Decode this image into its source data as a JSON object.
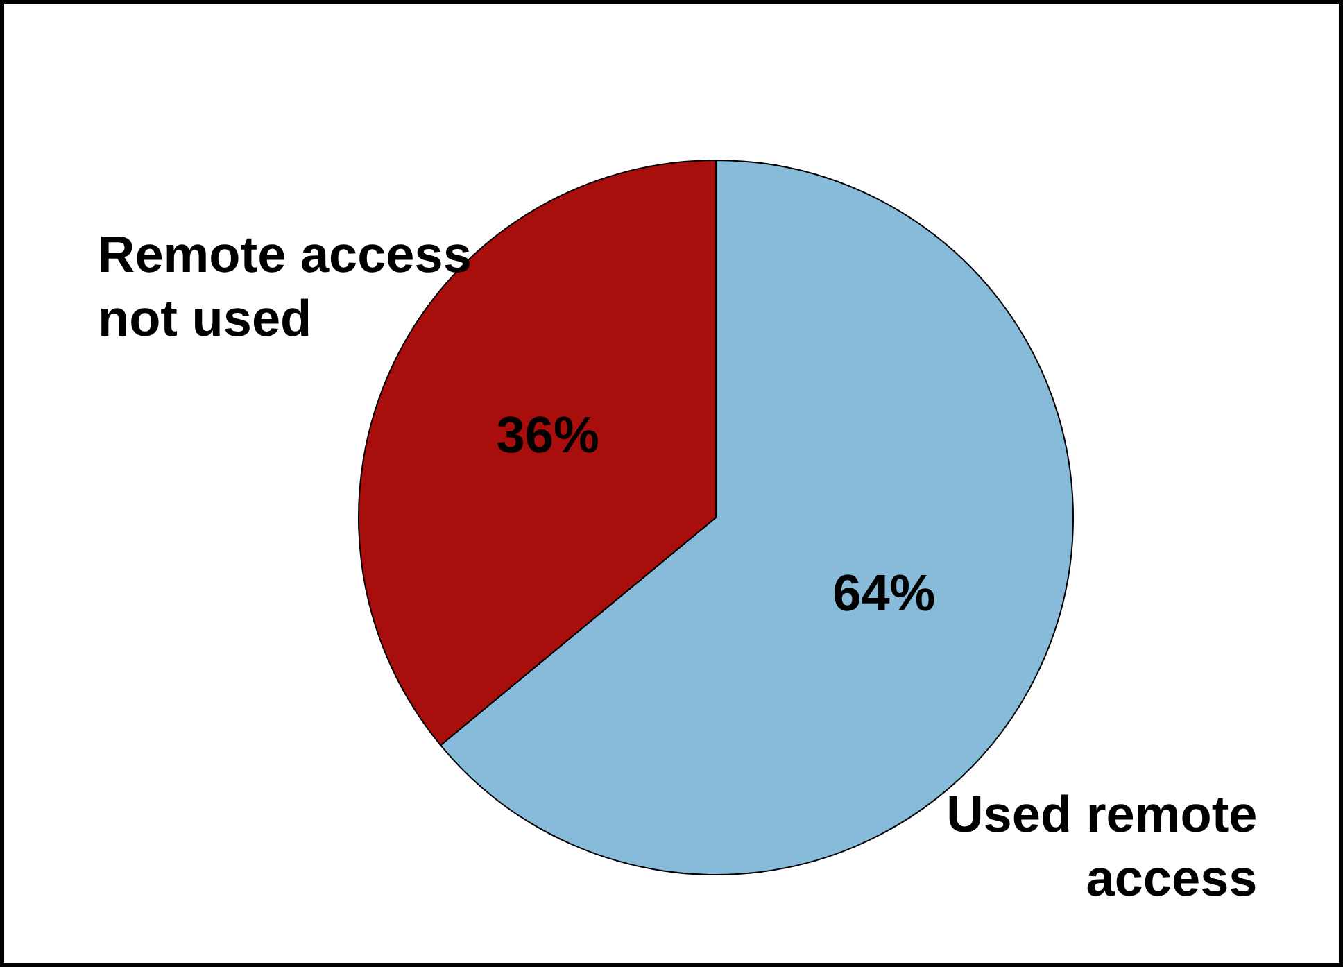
{
  "chart_data": {
    "type": "pie",
    "categories": [
      "Used remote access",
      "Remote access not used"
    ],
    "values": [
      64,
      36
    ],
    "colors": [
      "#87bbd9",
      "#a80e0b"
    ],
    "value_labels": [
      "64%",
      "36%"
    ],
    "legend": false
  }
}
